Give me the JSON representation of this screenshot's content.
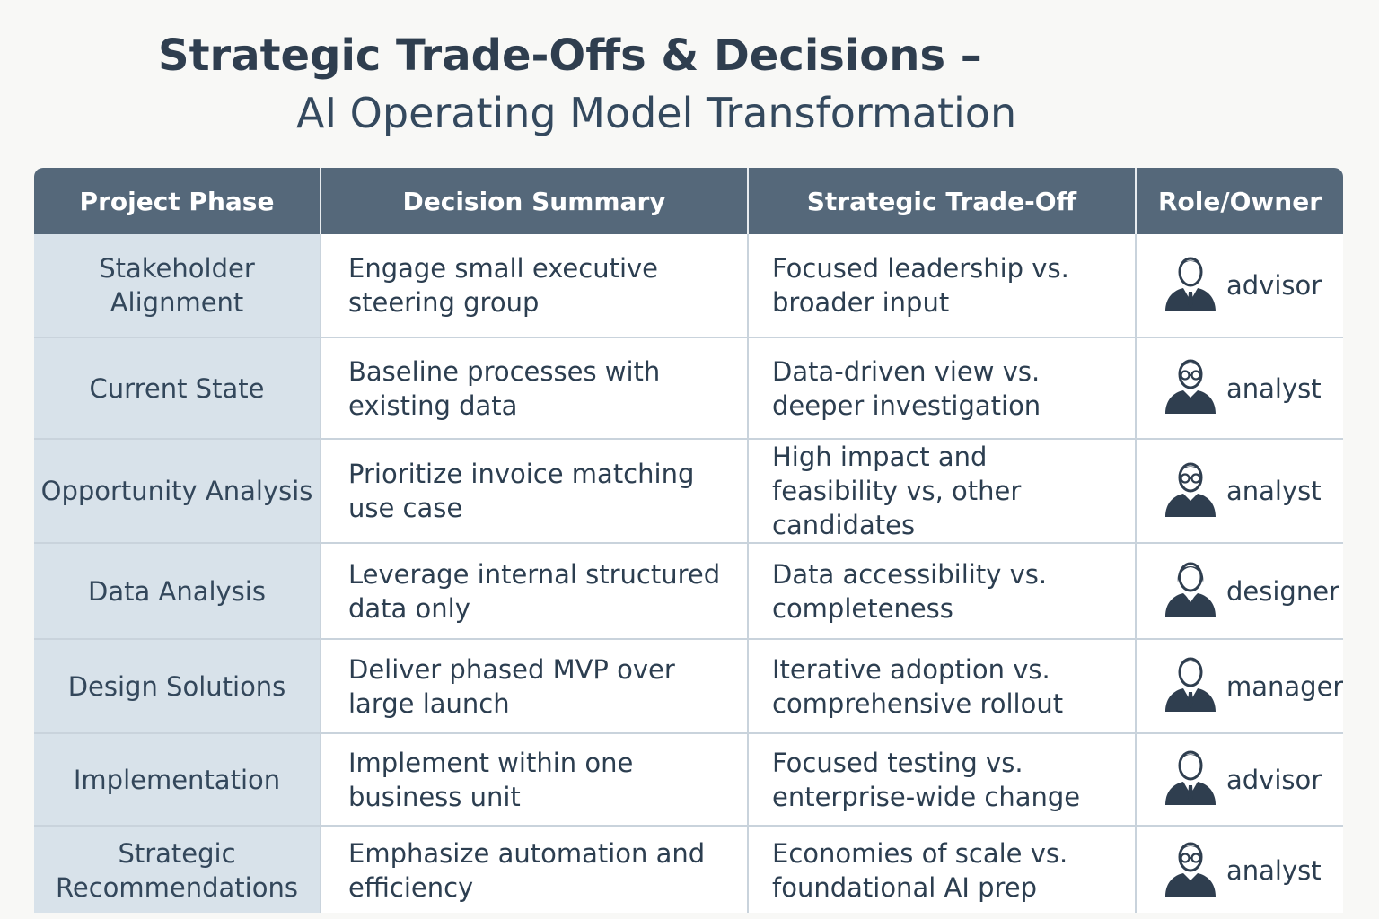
{
  "title": {
    "line1": "Strategic Trade-Offs & Decisions –",
    "line2": "AI Operating Model Transformation"
  },
  "table": {
    "headers": [
      "Project Phase",
      "Decision Summary",
      "Strategic Trade-Off",
      "Role/Owner"
    ],
    "rows": [
      {
        "phase": "Stakeholder Alignment",
        "decision": "Engage small executive steering group",
        "tradeoff": "Focused leadership vs. broader input",
        "owner": "advisor",
        "icon": "advisor-icon"
      },
      {
        "phase": "Current State",
        "decision": "Baseline processes with existing data",
        "tradeoff": "Data-driven view vs. deeper investigation",
        "owner": "analyst",
        "icon": "analyst-icon"
      },
      {
        "phase": "Opportunity Analysis",
        "decision": "Prioritize invoice matching use case",
        "tradeoff": "High impact and feasibility vs, other candidates",
        "owner": "analyst",
        "icon": "analyst-icon"
      },
      {
        "phase": "Data Analysis",
        "decision": "Leverage internal structured data only",
        "tradeoff": "Data accessibility vs. completeness",
        "owner": "designer",
        "icon": "designer-icon"
      },
      {
        "phase": "Design Solutions",
        "decision": "Deliver phased MVP over large launch",
        "tradeoff": "Iterative adoption vs. comprehensive rollout",
        "owner": "manager",
        "icon": "manager-icon"
      },
      {
        "phase": "Implementation",
        "decision": "Implement within one business unit",
        "tradeoff": "Focused testing vs. enterprise-wide change",
        "owner": "advisor",
        "icon": "advisor-icon"
      },
      {
        "phase": "Strategic Recommendations",
        "decision": "Emphasize automation and efficiency",
        "tradeoff": "Economies of scale vs. foundational AI prep",
        "owner": "analyst",
        "icon": "analyst-icon"
      }
    ]
  },
  "colors": {
    "header_bg": "#55687a",
    "phase_bg": "#d8e2ea",
    "border": "#c9d3dc",
    "icon": "#2f3e4f"
  }
}
